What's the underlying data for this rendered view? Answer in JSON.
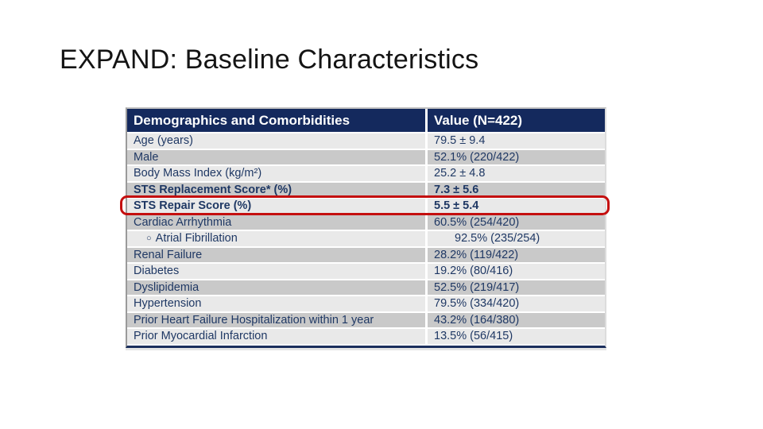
{
  "slide": {
    "title": "EXPAND: Baseline Characteristics",
    "background_color": "#ffffff",
    "title_color": "#141414"
  },
  "table": {
    "header": {
      "col1": "Demographics and Comorbidities",
      "col2": "Value (N=422)"
    },
    "colors": {
      "header_bg": "#14295d",
      "header_text": "#ffffff",
      "row_text": "#1f3864",
      "row_light_bg": "#e9e9e9",
      "row_dark_bg": "#c9c9c9",
      "highlight_border": "#c40f0f",
      "bottom_border": "#1b2e5c"
    },
    "rows": [
      {
        "label": "Age (years)",
        "value": "79.5 ± 9.4",
        "shade": "light"
      },
      {
        "label": "Male",
        "value": "52.1% (220/422)",
        "shade": "dark"
      },
      {
        "label": "Body Mass Index (kg/m²)",
        "value": "25.2 ± 4.8",
        "shade": "light"
      },
      {
        "label": "STS Replacement Score* (%)",
        "value": "7.3 ± 5.6",
        "shade": "dark",
        "bold": true
      },
      {
        "label": "STS Repair Score (%)",
        "value": "5.5 ± 5.4",
        "shade": "light",
        "bold": true,
        "highlighted": true
      },
      {
        "label": "Cardiac Arrhythmia",
        "value": "60.5% (254/420)",
        "shade": "dark"
      },
      {
        "label": "Atrial Fibrillation",
        "value": "92.5% (235/254)",
        "shade": "light",
        "indent": true,
        "bullet": "○"
      },
      {
        "label": "Renal Failure",
        "value": "28.2% (119/422)",
        "shade": "dark"
      },
      {
        "label": "Diabetes",
        "value": "19.2% (80/416)",
        "shade": "light"
      },
      {
        "label": "Dyslipidemia",
        "value": "52.5% (219/417)",
        "shade": "dark"
      },
      {
        "label": "Hypertension",
        "value": "79.5% (334/420)",
        "shade": "light"
      },
      {
        "label": "Prior Heart Failure Hospitalization within 1 year",
        "value": "43.2% (164/380)",
        "shade": "dark"
      },
      {
        "label": "Prior Myocardial Infarction",
        "value": "13.5% (56/415)",
        "shade": "light"
      }
    ]
  }
}
